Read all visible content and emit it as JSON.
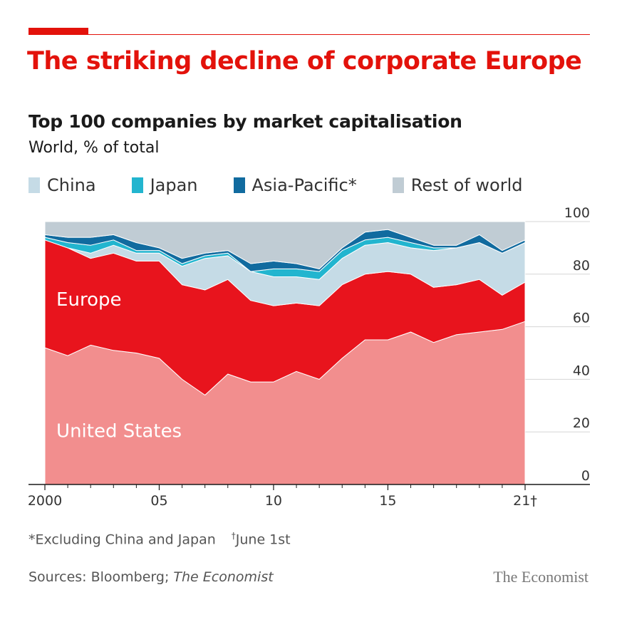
{
  "header": {
    "title": "The striking decline of corporate Europe",
    "subtitle": "Top 100 companies by market capitalisation",
    "unit": "World, % of total"
  },
  "colors": {
    "accent": "#e3120b",
    "us": "#f28e8e",
    "europe": "#e8141d",
    "china": "#c5dbe6",
    "japan": "#22b5cf",
    "asia_pacific": "#116b9f",
    "rest_of_world": "#c0ccd4"
  },
  "chart_data": {
    "type": "area",
    "stacked": true,
    "x": [
      2000,
      2001,
      2002,
      2003,
      2004,
      2005,
      2006,
      2007,
      2008,
      2009,
      2010,
      2011,
      2012,
      2013,
      2014,
      2015,
      2016,
      2017,
      2018,
      2019,
      2020,
      2021
    ],
    "x_tick_values": [
      2000,
      2005,
      2010,
      2015,
      2021
    ],
    "x_tick_labels": [
      "2000",
      "05",
      "10",
      "15",
      "21†"
    ],
    "ylim": [
      0,
      100
    ],
    "y_ticks": [
      0,
      20,
      40,
      60,
      80,
      100
    ],
    "y_axis_side": "right",
    "grid": true,
    "legend": [
      "China",
      "Japan",
      "Asia-Pacific*",
      "Rest of world"
    ],
    "series": [
      {
        "name": "United States",
        "key": "us",
        "values": [
          52,
          49,
          53,
          51,
          50,
          48,
          40,
          34,
          42,
          39,
          39,
          43,
          40,
          48,
          55,
          55,
          58,
          54,
          57,
          58,
          59,
          62
        ]
      },
      {
        "name": "Europe",
        "key": "europe",
        "values": [
          41,
          41,
          33,
          37,
          35,
          37,
          36,
          40,
          36,
          31,
          29,
          26,
          28,
          28,
          25,
          26,
          22,
          21,
          19,
          20,
          13,
          15
        ]
      },
      {
        "name": "China",
        "key": "china",
        "values": [
          0,
          0,
          2,
          3,
          3,
          3,
          7,
          12,
          9,
          11,
          11,
          10,
          10,
          10,
          11,
          11,
          10,
          14,
          14,
          14,
          16,
          15
        ]
      },
      {
        "name": "Japan",
        "key": "japan",
        "values": [
          1,
          2,
          3,
          2,
          1,
          1,
          1,
          1,
          1,
          0,
          3,
          3,
          3,
          3,
          2,
          2,
          2,
          1,
          0,
          0,
          0,
          0
        ]
      },
      {
        "name": "Asia-Pacific*",
        "key": "asia_pacific",
        "values": [
          1,
          2,
          3,
          2,
          3,
          1,
          2,
          1,
          1,
          3,
          3,
          2,
          1,
          1,
          3,
          3,
          2,
          1,
          1,
          3,
          1,
          1
        ]
      },
      {
        "name": "Rest of world",
        "key": "rest_of_world",
        "values": [
          5,
          6,
          6,
          5,
          8,
          10,
          14,
          12,
          11,
          16,
          15,
          16,
          18,
          10,
          4,
          3,
          6,
          9,
          9,
          5,
          11,
          7
        ]
      }
    ],
    "series_labels": [
      {
        "text": "Europe",
        "x": 2000.5,
        "y": 68
      },
      {
        "text": "United States",
        "x": 2000.5,
        "y": 18
      }
    ]
  },
  "footnote": {
    "asterisk": "*Excluding China and Japan",
    "dagger_mark": "†",
    "dagger_text": "June 1st"
  },
  "sources": {
    "prefix": "Sources: Bloomberg; ",
    "italic": "The Economist"
  },
  "brand": "The Economist"
}
